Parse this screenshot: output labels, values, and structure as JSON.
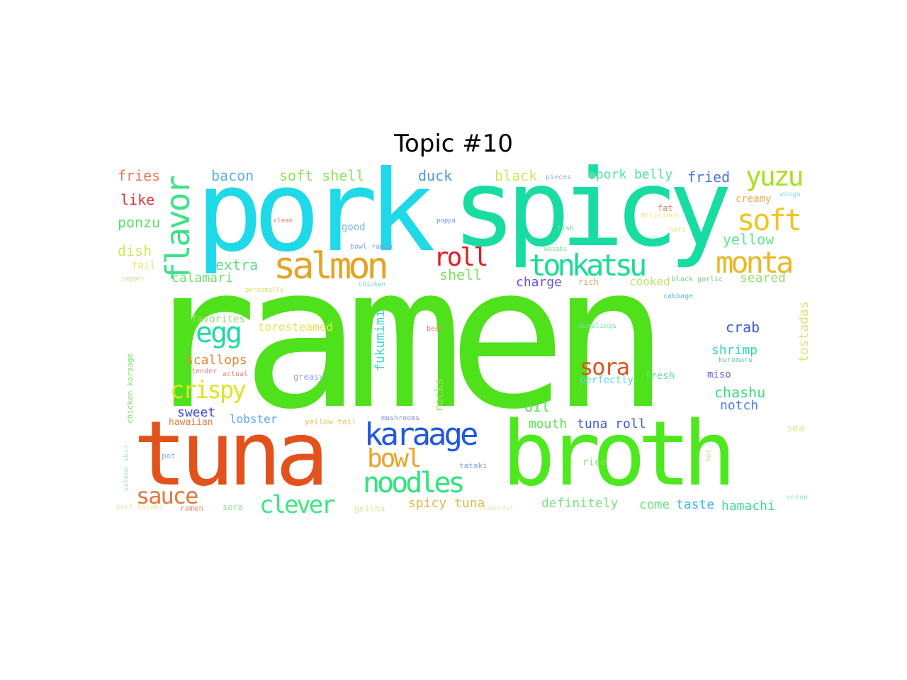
{
  "title": "Topic #10",
  "words": [
    {
      "text": "ramen",
      "color": "#4fe11b"
    },
    {
      "text": "pork",
      "color": "#1fd9e8"
    },
    {
      "text": "spicy",
      "color": "#18dca2"
    },
    {
      "text": "tuna",
      "color": "#e3521c"
    },
    {
      "text": "broth",
      "color": "#4ee81f"
    },
    {
      "text": "salmon",
      "color": "#e3a423"
    },
    {
      "text": "tonkatsu",
      "color": "#1ddb96"
    },
    {
      "text": "flavor",
      "color": "#3de285"
    },
    {
      "text": "yuzu",
      "color": "#a6e121"
    },
    {
      "text": "soft",
      "color": "#f0c523"
    },
    {
      "text": "monta",
      "color": "#e9b829"
    },
    {
      "text": "roll",
      "color": "#e31a24"
    },
    {
      "text": "egg",
      "color": "#21d9a7"
    },
    {
      "text": "karaage",
      "color": "#2158e3"
    },
    {
      "text": "noodles",
      "color": "#2fe57a"
    },
    {
      "text": "bowl",
      "color": "#e9a42b"
    },
    {
      "text": "crispy",
      "color": "#dde324"
    },
    {
      "text": "sora",
      "color": "#e0521e"
    },
    {
      "text": "sauce",
      "color": "#e4793c"
    },
    {
      "text": "clever",
      "color": "#3ee683"
    },
    {
      "text": "fries",
      "color": "#e8765e"
    },
    {
      "text": "bacon",
      "color": "#5db0e9"
    },
    {
      "text": "soft shell",
      "color": "#8ee45c"
    },
    {
      "text": "duck",
      "color": "#4f96e6"
    },
    {
      "text": "black",
      "color": "#c8e860"
    },
    {
      "text": "pieces",
      "color": "#9aa9e9"
    },
    {
      "text": "●pork belly",
      "color": "#4ee2a0"
    },
    {
      "text": "fried",
      "color": "#4c6fe3"
    },
    {
      "text": "like",
      "color": "#e3303a"
    },
    {
      "text": "creamy",
      "color": "#efaa57"
    },
    {
      "text": "wings",
      "color": "#8edcf2"
    },
    {
      "text": "ponzu",
      "color": "#5ce168"
    },
    {
      "text": "fat",
      "color": "#e37a66"
    },
    {
      "text": "delicious",
      "color": "#efe67b"
    },
    {
      "text": "dish",
      "color": "#d5e55b"
    },
    {
      "text": "tail",
      "color": "#e4e45d"
    },
    {
      "text": "good",
      "color": "#76b6e6"
    },
    {
      "text": "extra",
      "color": "#5fe082"
    },
    {
      "text": "shell",
      "color": "#7ee55b"
    },
    {
      "text": "yellow",
      "color": "#5ce28d"
    },
    {
      "text": "calamari",
      "color": "#6fe26b"
    },
    {
      "text": "charge",
      "color": "#6a4fe3"
    },
    {
      "text": "cooked",
      "color": "#bfe569"
    },
    {
      "text": "seared",
      "color": "#9cde6e"
    },
    {
      "text": "pepper",
      "color": "#c7e394"
    },
    {
      "text": "rich",
      "color": "#e6a06e"
    },
    {
      "text": "fish",
      "color": "#5ae6a2"
    },
    {
      "text": "nori",
      "color": "#e2e479"
    },
    {
      "text": "wasabi",
      "color": "#69e09b"
    },
    {
      "text": "personally",
      "color": "#c6e35c"
    },
    {
      "text": "chicken",
      "color": "#6ed0d9"
    },
    {
      "text": "black garlic",
      "color": "#6fd083"
    },
    {
      "text": "cabbage",
      "color": "#5fb4e5"
    },
    {
      "text": "bowl ramen",
      "color": "#7f9ce5"
    },
    {
      "text": "clean",
      "color": "#e57a59"
    },
    {
      "text": "poppa",
      "color": "#6f8fe4"
    },
    {
      "text": "favorites",
      "color": "#8fe05b"
    },
    {
      "text": "torosteamed",
      "color": "#e8e25d"
    },
    {
      "text": "fukumimi",
      "color": "#39d6d0"
    },
    {
      "text": "tostadas",
      "color": "#d9e478"
    },
    {
      "text": "crab",
      "color": "#3b57de"
    },
    {
      "text": "beef",
      "color": "#e47f66"
    },
    {
      "text": "dumplings",
      "color": "#6fe59c"
    },
    {
      "text": "shrimp",
      "color": "#2fd7b5"
    },
    {
      "text": "kuromaru",
      "color": "#6fc9ad"
    },
    {
      "text": "scallops",
      "color": "#e78433"
    },
    {
      "text": "tender",
      "color": "#e97c87"
    },
    {
      "text": "actual",
      "color": "#e5856e"
    },
    {
      "text": "greasy",
      "color": "#8fa7e6"
    },
    {
      "text": "fresh",
      "color": "#5fe29b"
    },
    {
      "text": "perfectly",
      "color": "#5fd5d9"
    },
    {
      "text": "miso",
      "color": "#5c5fe3"
    },
    {
      "text": "chashu",
      "color": "#38dd7e"
    },
    {
      "text": "chicken karaage",
      "color": "#7fdc6c"
    },
    {
      "text": "rocks",
      "color": "#a4df5c"
    },
    {
      "text": "sweet",
      "color": "#3c4ae0"
    },
    {
      "text": "oil",
      "color": "#4fe34e"
    },
    {
      "text": "notch",
      "color": "#4c7fe2"
    },
    {
      "text": "hawaiian",
      "color": "#e67d3a"
    },
    {
      "text": "lobster",
      "color": "#56a9e5"
    },
    {
      "text": "yellow tail",
      "color": "#e9c04f"
    },
    {
      "text": "mushrooms",
      "color": "#8a8ee5"
    },
    {
      "text": "mouth",
      "color": "#5ae055"
    },
    {
      "text": "tuna roll",
      "color": "#3c5ddf"
    },
    {
      "text": "sea",
      "color": "#e0e38d"
    },
    {
      "text": "pot",
      "color": "#8ea5e6"
    },
    {
      "text": "tataki",
      "color": "#7f9be6"
    },
    {
      "text": "rice",
      "color": "#7fe06f"
    },
    {
      "text": "hot",
      "color": "#dde38d"
    },
    {
      "text": "salmon skin",
      "color": "#a8e1c8"
    },
    {
      "text": "spicy tuna",
      "color": "#e0b94c"
    },
    {
      "text": "definitely",
      "color": "#7fe17a"
    },
    {
      "text": "come",
      "color": "#6fe57d"
    },
    {
      "text": "taste",
      "color": "#3fb4e4"
    },
    {
      "text": "hamachi",
      "color": "#3fdb8e"
    },
    {
      "text": "onion",
      "color": "#8edfe2"
    },
    {
      "text": "beef tataki",
      "color": "#e7e49a"
    },
    {
      "text": "ramen",
      "color": "#e88c74"
    },
    {
      "text": "sora",
      "color": "#8fe09e"
    },
    {
      "text": "geisha",
      "color": "#dfe68f"
    },
    {
      "text": "flavorful",
      "color": "#e7e5a5"
    }
  ]
}
